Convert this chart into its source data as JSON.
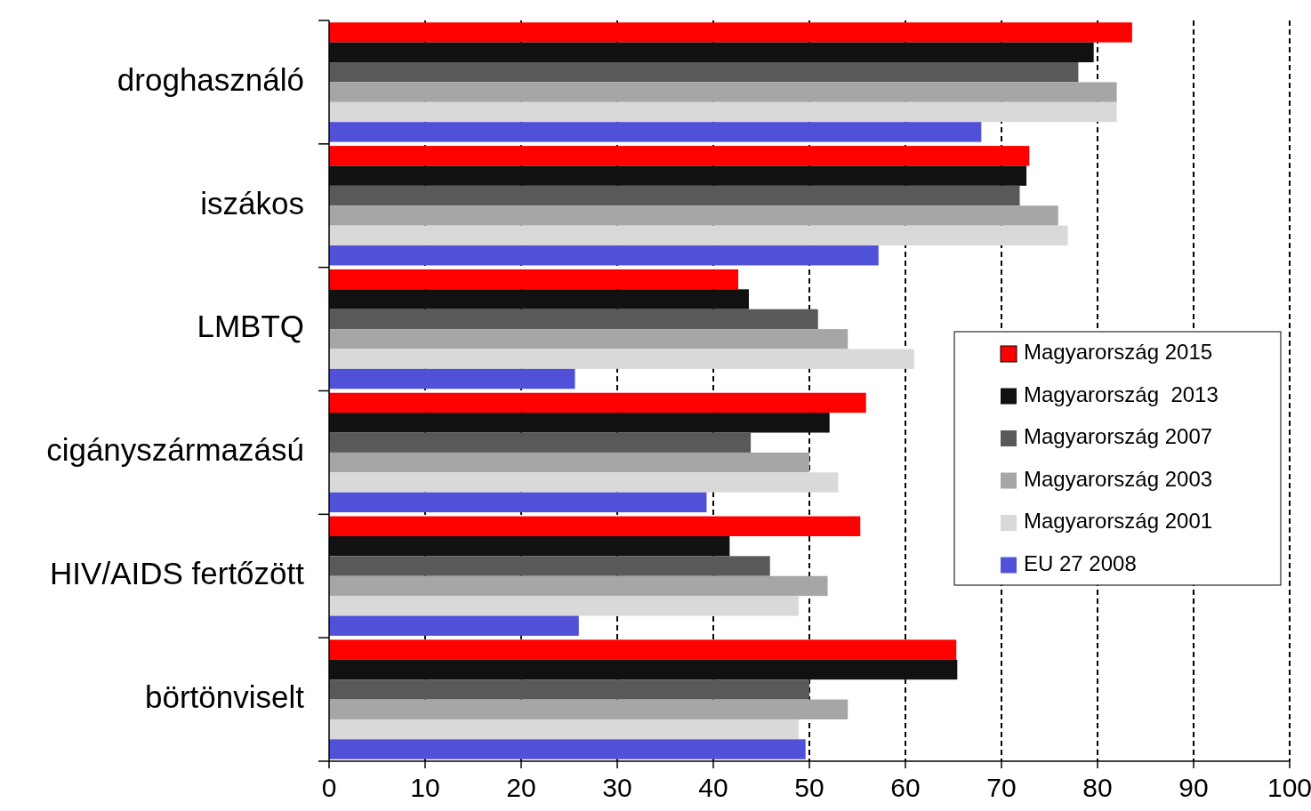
{
  "chart_data": {
    "type": "bar",
    "orientation": "horizontal",
    "categories": [
      "droghasználó",
      "iszákos",
      "LMBTQ",
      "cigányszármazású",
      "HIV/AIDS fertőzött",
      "börtönviselt"
    ],
    "series": [
      {
        "name": "Magyarország 2015",
        "color": "#ff0000",
        "values": [
          83.6,
          72.9,
          42.6,
          55.9,
          55.3,
          65.3
        ]
      },
      {
        "name": "Magyarország  2013",
        "color": "#111111",
        "values": [
          79.6,
          72.6,
          43.7,
          52.1,
          41.7,
          65.4
        ]
      },
      {
        "name": "Magyarország 2007",
        "color": "#595959",
        "values": [
          78,
          71.9,
          50.9,
          43.9,
          45.9,
          50
        ]
      },
      {
        "name": "Magyarország 2003",
        "color": "#a6a6a6",
        "values": [
          82,
          75.9,
          54,
          50,
          51.9,
          54
        ]
      },
      {
        "name": "Magyarország 2001",
        "color": "#d9d9d9",
        "values": [
          82,
          76.9,
          60.9,
          53,
          48.9,
          48.9
        ]
      },
      {
        "name": "EU 27 2008",
        "color": "#5050d8",
        "values": [
          67.9,
          57.2,
          25.6,
          39.3,
          26,
          49.6
        ]
      }
    ],
    "xlim": [
      0,
      100
    ],
    "xticks": [
      0,
      10,
      20,
      30,
      40,
      50,
      60,
      70,
      80,
      90,
      100
    ],
    "grid": "x",
    "legend": "right"
  }
}
